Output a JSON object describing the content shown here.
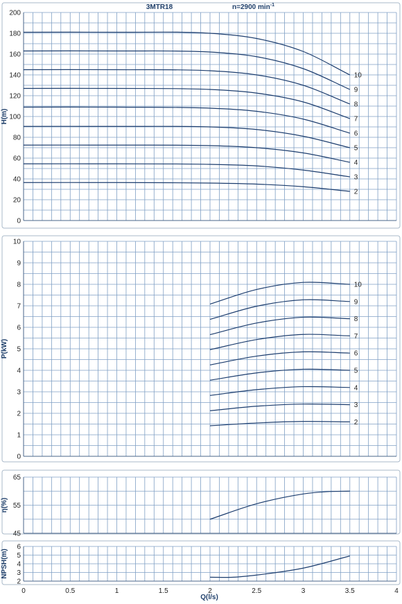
{
  "chart_data": {
    "type": "line",
    "title": "3MTR18",
    "subtitle": "n=2900 min",
    "subtitle_sup": "-1",
    "xlabel": "Q(l/s)",
    "xlim": [
      0,
      4
    ],
    "x_ticks": [
      "0",
      "0.5",
      "1",
      "1.5",
      "2",
      "2.5",
      "3",
      "3.5",
      "4"
    ],
    "colors": {
      "curve": "#1c3d6e",
      "grid": "#7f9fc4",
      "frame": "#a9b9c9",
      "label": "#1f3f6a"
    },
    "panels": [
      {
        "id": "head",
        "ylabel": "H(m)",
        "ylim": [
          0,
          200
        ],
        "y_ticks": [
          "0",
          "20",
          "40",
          "60",
          "80",
          "100",
          "120",
          "140",
          "160",
          "180",
          "200"
        ],
        "series": [
          {
            "label": "2",
            "x": [
              0,
              1,
              2,
              2.5,
              3,
              3.5
            ],
            "y": [
              36.5,
              36.5,
              36,
              35,
              32.5,
              28
            ]
          },
          {
            "label": "3",
            "x": [
              0,
              1,
              2,
              2.5,
              3,
              3.5
            ],
            "y": [
              54.5,
              54.5,
              54,
              52.5,
              48.5,
              42
            ]
          },
          {
            "label": "4",
            "x": [
              0,
              1,
              2,
              2.5,
              3,
              3.5
            ],
            "y": [
              72.5,
              72.5,
              72,
              70,
              65,
              56
            ]
          },
          {
            "label": "5",
            "x": [
              0,
              1,
              2,
              2.5,
              3,
              3.5
            ],
            "y": [
              90.5,
              90.5,
              90,
              87.5,
              81,
              70
            ]
          },
          {
            "label": "6",
            "x": [
              0,
              1,
              2,
              2.5,
              3,
              3.5
            ],
            "y": [
              109,
              109,
              108,
              105,
              97.5,
              84
            ]
          },
          {
            "label": "7",
            "x": [
              0,
              1,
              2,
              2.5,
              3,
              3.5
            ],
            "y": [
              127,
              127,
              126,
              122.5,
              114,
              98
            ]
          },
          {
            "label": "8",
            "x": [
              0,
              1,
              2,
              2.5,
              3,
              3.5
            ],
            "y": [
              145,
              145,
              144,
              140,
              130,
              112
            ]
          },
          {
            "label": "9",
            "x": [
              0,
              1,
              2,
              2.5,
              3,
              3.5
            ],
            "y": [
              163,
              163,
              162,
              157.5,
              146,
              126
            ]
          },
          {
            "label": "10",
            "x": [
              0,
              1,
              2,
              2.5,
              3,
              3.5
            ],
            "y": [
              181,
              181,
              180,
              175,
              162.5,
              140
            ]
          }
        ]
      },
      {
        "id": "power",
        "ylabel": "P(kW)",
        "ylim": [
          0,
          10
        ],
        "y_ticks": [
          "0",
          "1",
          "2",
          "3",
          "4",
          "5",
          "6",
          "7",
          "8",
          "9",
          "10"
        ],
        "series": [
          {
            "label": "2",
            "x": [
              2,
              2.5,
              3,
              3.5
            ],
            "y": [
              1.42,
              1.55,
              1.62,
              1.6
            ]
          },
          {
            "label": "3",
            "x": [
              2,
              2.5,
              3,
              3.5
            ],
            "y": [
              2.12,
              2.33,
              2.43,
              2.4
            ]
          },
          {
            "label": "4",
            "x": [
              2,
              2.5,
              3,
              3.5
            ],
            "y": [
              2.83,
              3.1,
              3.24,
              3.2
            ]
          },
          {
            "label": "5",
            "x": [
              2,
              2.5,
              3,
              3.5
            ],
            "y": [
              3.54,
              3.88,
              4.05,
              4.0
            ]
          },
          {
            "label": "6",
            "x": [
              2,
              2.5,
              3,
              3.5
            ],
            "y": [
              4.25,
              4.66,
              4.86,
              4.8
            ]
          },
          {
            "label": "7",
            "x": [
              2,
              2.5,
              3,
              3.5
            ],
            "y": [
              4.96,
              5.43,
              5.67,
              5.6
            ]
          },
          {
            "label": "8",
            "x": [
              2,
              2.5,
              3,
              3.5
            ],
            "y": [
              5.66,
              6.2,
              6.47,
              6.4
            ]
          },
          {
            "label": "9",
            "x": [
              2,
              2.5,
              3,
              3.5
            ],
            "y": [
              6.37,
              6.98,
              7.28,
              7.2
            ]
          },
          {
            "label": "10",
            "x": [
              2,
              2.5,
              3,
              3.5
            ],
            "y": [
              7.08,
              7.76,
              8.09,
              8.0
            ]
          }
        ]
      },
      {
        "id": "efficiency",
        "ylabel": "η(%)",
        "ylim": [
          45,
          65
        ],
        "y_ticks": [
          "45",
          "55",
          "65"
        ],
        "series": [
          {
            "label": "",
            "x": [
              2,
              2.5,
              3,
              3.25,
              3.5
            ],
            "y": [
              50,
              55.5,
              59,
              59.8,
              60
            ]
          }
        ]
      },
      {
        "id": "npsh",
        "ylabel": "NPSH(m)",
        "ylim": [
          2,
          6
        ],
        "y_ticks": [
          "2",
          "3",
          "4",
          "5",
          "6"
        ],
        "series": [
          {
            "label": "",
            "x": [
              2,
              2.25,
              2.5,
              3,
              3.5
            ],
            "y": [
              2.45,
              2.45,
              2.7,
              3.5,
              4.9
            ]
          }
        ]
      }
    ]
  }
}
